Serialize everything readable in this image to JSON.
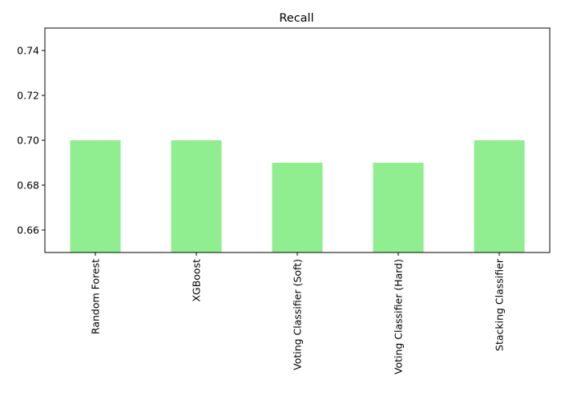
{
  "chart_data": {
    "type": "bar",
    "title": "Recall",
    "xlabel": "",
    "ylabel": "",
    "categories": [
      "Random Forest",
      "XGBoost",
      "Voting Classifier (Soft)",
      "Voting Classifier (Hard)",
      "Stacking Classifier"
    ],
    "values": [
      0.7,
      0.7,
      0.69,
      0.69,
      0.7
    ],
    "ylim": [
      0.65,
      0.75
    ],
    "yticks": [
      0.66,
      0.68,
      0.7,
      0.72,
      0.74
    ],
    "ytick_labels": [
      "0.66",
      "0.68",
      "0.70",
      "0.72",
      "0.74"
    ],
    "bar_color": "#90ee90",
    "grid": false,
    "legend": "none"
  }
}
